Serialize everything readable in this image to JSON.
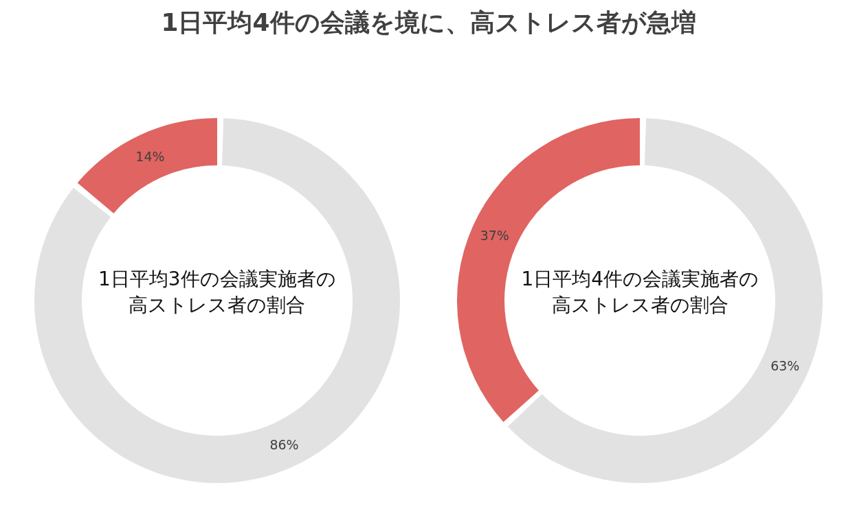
{
  "chart_data": [
    {
      "type": "donut",
      "title": "1日平均3件の会議実施者の高ストレス者の割合",
      "annotations": [
        "1日平均4件の会議を境に、高ストレス者が急増"
      ],
      "categories": [
        null,
        null
      ],
      "values": [
        14,
        86
      ],
      "value_labels": [
        "14%",
        "86%"
      ],
      "colors": [
        "#e06461",
        "#e2e2e2"
      ]
    },
    {
      "type": "donut",
      "title": "1日平均4件の会議実施者の高ストレス者の割合",
      "categories": [
        null,
        null
      ],
      "values": [
        37,
        63
      ],
      "value_labels": [
        "37%",
        "63%"
      ],
      "colors": [
        "#e06461",
        "#e2e2e2"
      ]
    }
  ]
}
